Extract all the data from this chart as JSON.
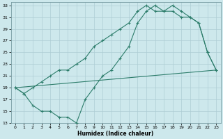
{
  "xlabel": "Humidex (Indice chaleur)",
  "bg_color": "#cde8ec",
  "line_color": "#2d7d6b",
  "grid_color": "#aecdd4",
  "xlim": [
    -0.5,
    23.5
  ],
  "ylim": [
    13,
    33.5
  ],
  "xticks": [
    0,
    1,
    2,
    3,
    4,
    5,
    6,
    7,
    8,
    9,
    10,
    11,
    12,
    13,
    14,
    15,
    16,
    17,
    18,
    19,
    20,
    21,
    22,
    23
  ],
  "yticks": [
    13,
    15,
    17,
    19,
    21,
    23,
    25,
    27,
    29,
    31,
    33
  ],
  "line1_x": [
    0,
    1,
    2,
    3,
    4,
    5,
    6,
    7,
    8,
    9,
    10,
    11,
    12,
    13,
    14,
    15,
    16,
    17,
    18,
    19,
    20,
    21,
    22,
    23
  ],
  "line1_y": [
    19,
    18,
    16,
    15,
    15,
    14,
    14,
    13,
    17,
    19,
    21,
    22,
    24,
    26,
    30,
    32,
    33,
    32,
    33,
    32,
    31,
    30,
    25,
    22
  ],
  "line2_x": [
    0,
    23
  ],
  "line2_y": [
    19,
    22
  ],
  "line3_x": [
    0,
    1,
    2,
    3,
    4,
    5,
    6,
    7,
    8,
    9,
    10,
    11,
    12,
    13,
    14,
    15,
    16,
    17,
    18,
    19,
    20,
    21,
    22,
    23
  ],
  "line3_y": [
    19,
    18,
    19,
    20,
    21,
    22,
    22,
    23,
    24,
    26,
    27,
    28,
    29,
    30,
    32,
    33,
    32,
    32,
    32,
    31,
    31,
    30,
    25,
    22
  ]
}
